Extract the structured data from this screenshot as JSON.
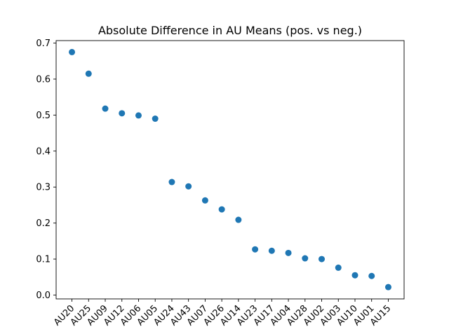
{
  "chart_data": {
    "type": "scatter",
    "title": "Absolute Difference in AU Means (pos. vs neg.)",
    "xlabel": "",
    "ylabel": "",
    "categories": [
      "AU20",
      "AU25",
      "AU09",
      "AU12",
      "AU06",
      "AU05",
      "AU24",
      "AU43",
      "AU07",
      "AU26",
      "AU14",
      "AU23",
      "AU17",
      "AU04",
      "AU28",
      "AU02",
      "AU03",
      "AU10",
      "AU01",
      "AU15"
    ],
    "values": [
      0.675,
      0.615,
      0.518,
      0.505,
      0.499,
      0.49,
      0.314,
      0.302,
      0.263,
      0.238,
      0.209,
      0.127,
      0.123,
      0.117,
      0.102,
      0.1,
      0.076,
      0.055,
      0.053,
      0.022
    ],
    "ylim": [
      -0.0107,
      0.7069
    ],
    "yticks": [
      "0.0",
      "0.1",
      "0.2",
      "0.3",
      "0.4",
      "0.5",
      "0.6",
      "0.7"
    ],
    "grid": false,
    "legend": "none",
    "marker_color": "#1f77b4"
  }
}
